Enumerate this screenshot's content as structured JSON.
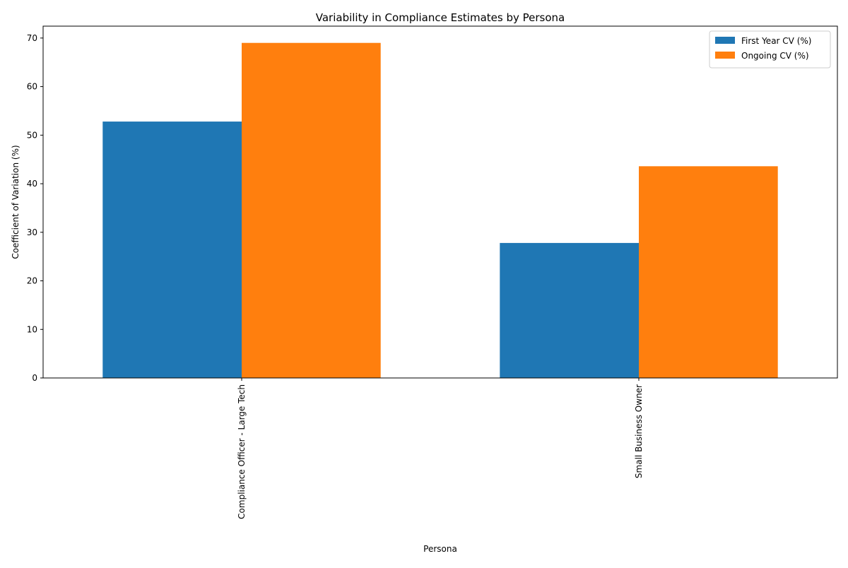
{
  "chart_data": {
    "type": "bar",
    "title": "Variability in Compliance Estimates by Persona",
    "xlabel": "Persona",
    "ylabel": "Coefficient of Variation (%)",
    "categories": [
      "Compliance Officer - Large Tech",
      "Small Business Owner"
    ],
    "series": [
      {
        "name": "First Year CV (%)",
        "values": [
          52.8,
          27.8
        ],
        "color": "#1f77b4"
      },
      {
        "name": "Ongoing CV (%)",
        "values": [
          69.0,
          43.6
        ],
        "color": "#ff7f0e"
      }
    ],
    "ylim": [
      0,
      72.45
    ],
    "yticks": [
      0,
      10,
      20,
      30,
      40,
      50,
      60,
      70
    ],
    "legend": "top-right",
    "grid": false
  }
}
